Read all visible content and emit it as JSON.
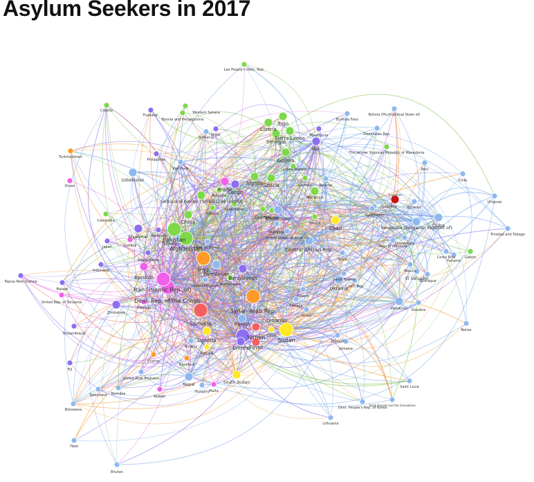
{
  "title": "Asylum Seekers in 2017",
  "colors": {
    "green": "#7dd84a",
    "blue": "#8fb8ee",
    "purple": "#8c6ff0",
    "red": "#f46060",
    "orange": "#ff9a28",
    "yellow": "#ffe825",
    "pink": "#f060e8",
    "darkred": "#c41410",
    "edge_green": "#7dc24a",
    "edge_blue": "#6a9ee8",
    "edge_purple": "#7a62e8",
    "edge_pink": "#e050d8",
    "edge_orange": "#f39a30",
    "edge_red": "#e05050"
  },
  "chart_data": {
    "type": "network",
    "title": "Asylum Seekers in 2017",
    "nodes": [
      {
        "id": "Lao People's Dem. Rep.",
        "color": "green",
        "size": "small"
      },
      {
        "id": "Croatia",
        "color": "green",
        "size": "small"
      },
      {
        "id": "Thailand",
        "color": "purple",
        "size": "small"
      },
      {
        "id": "Bosnia and Herzegovina",
        "color": "green",
        "size": "small"
      },
      {
        "id": "Western Sahara",
        "color": "green",
        "size": "small"
      },
      {
        "id": "Romania",
        "color": "blue",
        "size": "small"
      },
      {
        "id": "Niger",
        "color": "purple",
        "size": "small"
      },
      {
        "id": "Burkina Faso",
        "color": "blue",
        "size": "small"
      },
      {
        "id": "Bolivia (Plurinational State of)",
        "color": "blue",
        "size": "small"
      },
      {
        "id": "Dominican Rep.",
        "color": "blue",
        "size": "small"
      },
      {
        "id": "The former Yugoslav Republic of Macedonia",
        "color": "green",
        "size": "small"
      },
      {
        "id": "Turkmenistan",
        "color": "orange",
        "size": "small"
      },
      {
        "id": "Oman",
        "color": "pink",
        "size": "small"
      },
      {
        "id": "Philippines",
        "color": "purple",
        "size": "small"
      },
      {
        "id": "Viet Nam",
        "color": "blue",
        "size": "small"
      },
      {
        "id": "Uzbekistan",
        "color": "blue",
        "size": "medium"
      },
      {
        "id": "Liberia",
        "color": "green",
        "size": "medium"
      },
      {
        "id": "Togo",
        "color": "green",
        "size": "medium"
      },
      {
        "id": "Sierra Leone",
        "color": "green",
        "size": "medium"
      },
      {
        "id": "Mauritania",
        "color": "purple",
        "size": "small"
      },
      {
        "id": "Mali",
        "color": "purple",
        "size": "medium"
      },
      {
        "id": "Senegal",
        "color": "green",
        "size": "medium"
      },
      {
        "id": "Guinea",
        "color": "green",
        "size": "medium"
      },
      {
        "id": "Guinea-Bissau",
        "color": "green",
        "size": "small"
      },
      {
        "id": "Gambia",
        "color": "green",
        "size": "small"
      },
      {
        "id": "Belarus",
        "color": "blue",
        "size": "small"
      },
      {
        "id": "Peru",
        "color": "blue",
        "size": "small"
      },
      {
        "id": "Chile",
        "color": "blue",
        "size": "small"
      },
      {
        "id": "Angola",
        "color": "pink",
        "size": "medium"
      },
      {
        "id": "Congo",
        "color": "purple",
        "size": "medium"
      },
      {
        "id": "Algeria",
        "color": "green",
        "size": "medium"
      },
      {
        "id": "Ghana",
        "color": "green",
        "size": "medium"
      },
      {
        "id": "Morocco",
        "color": "green",
        "size": "medium"
      },
      {
        "id": "Argentina",
        "color": "darkred",
        "size": "medium"
      },
      {
        "id": "Uruguay",
        "color": "blue",
        "size": "small"
      },
      {
        "id": "Colombia",
        "color": "blue",
        "size": "small"
      },
      {
        "id": "Ecuador",
        "color": "blue",
        "size": "small"
      },
      {
        "id": "Serbia and Kosovo (S/RES/1244 (1999))",
        "color": "green",
        "size": "medium"
      },
      {
        "id": "Bulgaria",
        "color": "green",
        "size": "small"
      },
      {
        "id": "Kazakhstan",
        "color": "green",
        "size": "small"
      },
      {
        "id": "Albania",
        "color": "green",
        "size": "small"
      },
      {
        "id": "Georgia",
        "color": "green",
        "size": "small"
      },
      {
        "id": "Tajikistan",
        "color": "green",
        "size": "small"
      },
      {
        "id": "Cameroon",
        "color": "blue",
        "size": "medium"
      },
      {
        "id": "Cambodia",
        "color": "green",
        "size": "small"
      },
      {
        "id": "Kyrgyzstan",
        "color": "blue",
        "size": "small"
      },
      {
        "id": "Tunisia",
        "color": "green",
        "size": "small"
      },
      {
        "id": "Chad",
        "color": "yellow",
        "size": "medium"
      },
      {
        "id": "Cuba",
        "color": "blue",
        "size": "medium"
      },
      {
        "id": "Trinidad and Tobago",
        "color": "blue",
        "size": "small"
      },
      {
        "id": "Venezuela (Bolivarian Republic of)",
        "color": "blue",
        "size": "medium"
      },
      {
        "id": "China",
        "color": "green",
        "size": "medium"
      },
      {
        "id": "Myanmar",
        "color": "purple",
        "size": "medium"
      },
      {
        "id": "Mongolia",
        "color": "blue",
        "size": "small"
      },
      {
        "id": "United States of America",
        "color": "blue",
        "size": "small"
      },
      {
        "id": "Pakistan",
        "color": "green",
        "size": "large"
      },
      {
        "id": "Rep. of Korea",
        "color": "blue",
        "size": "small"
      },
      {
        "id": "Zambia",
        "color": "pink",
        "size": "small"
      },
      {
        "id": "Malaysia",
        "color": "purple",
        "size": "small"
      },
      {
        "id": "Turkey",
        "color": "blue",
        "size": "medium"
      },
      {
        "id": "Afghanistan",
        "color": "green",
        "size": "large"
      },
      {
        "id": "Central African Rep.",
        "color": "blue",
        "size": "medium"
      },
      {
        "id": "Guatemala",
        "color": "blue",
        "size": "small"
      },
      {
        "id": "Rep. of Moldova",
        "color": "blue",
        "size": "small"
      },
      {
        "id": "Costa Rica",
        "color": "blue",
        "size": "small"
      },
      {
        "id": "Panama",
        "color": "blue",
        "size": "small"
      },
      {
        "id": "Gabon",
        "color": "green",
        "size": "small"
      },
      {
        "id": "Japan",
        "color": "purple",
        "size": "small"
      },
      {
        "id": "Indonesia",
        "color": "purple",
        "size": "small"
      },
      {
        "id": "South Africa",
        "color": "purple",
        "size": "small"
      },
      {
        "id": "Iraq",
        "color": "orange",
        "size": "large"
      },
      {
        "id": "Palestinian",
        "color": "blue",
        "size": "medium"
      },
      {
        "id": "Spain",
        "color": "blue",
        "size": "small"
      },
      {
        "id": "Mexico",
        "color": "blue",
        "size": "small"
      },
      {
        "id": "El Salvador",
        "color": "blue",
        "size": "small"
      },
      {
        "id": "Nicaragua",
        "color": "blue",
        "size": "small"
      },
      {
        "id": "Papua New Guinea",
        "color": "purple",
        "size": "small"
      },
      {
        "id": "Burundi",
        "color": "pink",
        "size": "medium"
      },
      {
        "id": "Iran (Islamic Rep. of)",
        "color": "pink",
        "size": "large"
      },
      {
        "id": "United Kingdom",
        "color": "blue",
        "size": "small"
      },
      {
        "id": "Bangladesh",
        "color": "purple",
        "size": "medium"
      },
      {
        "id": "Montenegro",
        "color": "green",
        "size": "small"
      },
      {
        "id": "Saudi Arabia",
        "color": "blue",
        "size": "small"
      },
      {
        "id": "Czech Rep.",
        "color": "blue",
        "size": "small"
      },
      {
        "id": "Ukraine",
        "color": "blue",
        "size": "medium"
      },
      {
        "id": "Malawi",
        "color": "purple",
        "size": "small"
      },
      {
        "id": "Dem. Rep. of the Congo",
        "color": "pink",
        "size": "large"
      },
      {
        "id": "Poland",
        "color": "blue",
        "size": "small"
      },
      {
        "id": "United Rep. of Tanzania",
        "color": "pink",
        "size": "small"
      },
      {
        "id": "Zimbabwe",
        "color": "purple",
        "size": "medium"
      },
      {
        "id": "Rwanda",
        "color": "pink",
        "size": "small"
      },
      {
        "id": "Syrian Arab Rep.",
        "color": "orange",
        "size": "large"
      },
      {
        "id": "Canada",
        "color": "blue",
        "size": "small"
      },
      {
        "id": "Honduras",
        "color": "blue",
        "size": "medium"
      },
      {
        "id": "Slovakia",
        "color": "blue",
        "size": "small"
      },
      {
        "id": "Israel",
        "color": "blue",
        "size": "small"
      },
      {
        "id": "Belize",
        "color": "blue",
        "size": "small"
      },
      {
        "id": "Somalia",
        "color": "red",
        "size": "large"
      },
      {
        "id": "Russia",
        "color": "blue",
        "size": "medium"
      },
      {
        "id": "Lebanon",
        "color": "red",
        "size": "medium"
      },
      {
        "id": "Sudan",
        "color": "yellow",
        "size": "large"
      },
      {
        "id": "Libya",
        "color": "yellow",
        "size": "small"
      },
      {
        "id": "Mozambique",
        "color": "purple",
        "size": "small"
      },
      {
        "id": "Uganda",
        "color": "yellow",
        "size": "medium"
      },
      {
        "id": "Yemen",
        "color": "purple",
        "size": "large"
      },
      {
        "id": "Eritrea",
        "color": "purple",
        "size": "medium"
      },
      {
        "id": "Egypt",
        "color": "red",
        "size": "medium"
      },
      {
        "id": "Djibouti",
        "color": "blue",
        "size": "small"
      },
      {
        "id": "Kenya",
        "color": "yellow",
        "size": "small"
      },
      {
        "id": "Jamaica",
        "color": "blue",
        "size": "small"
      },
      {
        "id": "Norway",
        "color": "blue",
        "size": "small"
      },
      {
        "id": "Cyprus",
        "color": "orange",
        "size": "small"
      },
      {
        "id": "Denmark",
        "color": "orange",
        "size": "small"
      },
      {
        "id": "Fiji",
        "color": "purple",
        "size": "small"
      },
      {
        "id": "United Arab Emirates",
        "color": "blue",
        "size": "small"
      },
      {
        "id": "Nepal",
        "color": "blue",
        "size": "medium"
      },
      {
        "id": "South Sudan",
        "color": "yellow",
        "size": "medium"
      },
      {
        "id": "Hungary",
        "color": "blue",
        "size": "small"
      },
      {
        "id": "Malta",
        "color": "pink",
        "size": "small"
      },
      {
        "id": "Saint Lucia",
        "color": "blue",
        "size": "small"
      },
      {
        "id": "Swaziland",
        "color": "blue",
        "size": "small"
      },
      {
        "id": "Namibia",
        "color": "blue",
        "size": "small"
      },
      {
        "id": "Kuwait",
        "color": "pink",
        "size": "small"
      },
      {
        "id": "Botswana",
        "color": "blue",
        "size": "small"
      },
      {
        "id": "Dem. People's Rep. of Korea",
        "color": "blue",
        "size": "small"
      },
      {
        "id": "Saint Vincent and the Grenadines",
        "color": "blue",
        "size": "small"
      },
      {
        "id": "Lithuania",
        "color": "blue",
        "size": "small"
      },
      {
        "id": "Tibet",
        "color": "blue",
        "size": "small"
      },
      {
        "id": "Bhutan",
        "color": "blue",
        "size": "small"
      }
    ]
  }
}
